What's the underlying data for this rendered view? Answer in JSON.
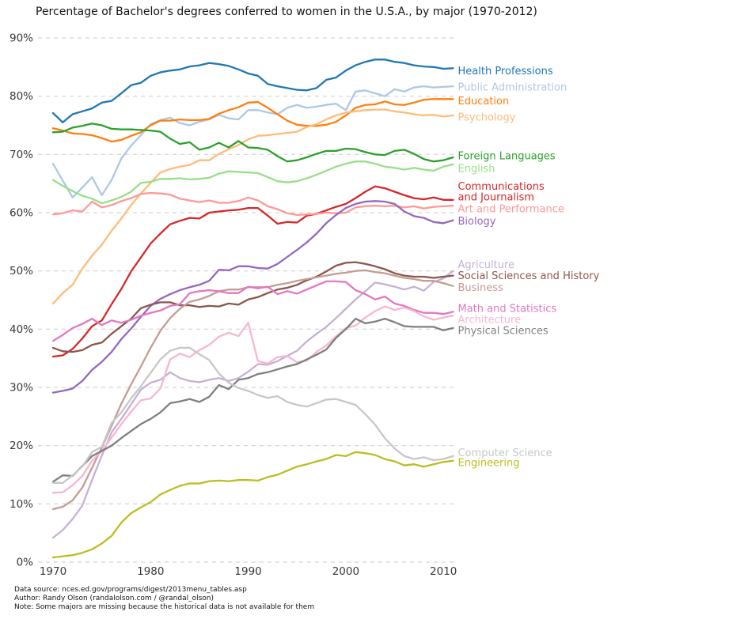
{
  "title": "Percentage of Bachelor's degrees conferred to women in the U.S.A., by major (1970-2012)",
  "footer": {
    "lines": [
      "Data source: nces.ed.gov/programs/digest/2013menu_tables.asp",
      "Author: Randy Olson (randalolson.com / @randal_olson)",
      "Note: Some majors are missing because the historical data is not available for them"
    ]
  },
  "chart_data": {
    "type": "line",
    "title": "Percentage of Bachelor's degrees conferred to women in the U.S.A., by major (1970-2012)",
    "xlabel": "",
    "ylabel": "",
    "xlim": [
      1970,
      2011
    ],
    "ylim": [
      0,
      90
    ],
    "x_ticks": [
      1970,
      1980,
      1990,
      2000,
      2010
    ],
    "y_ticks": [
      0,
      10,
      20,
      30,
      40,
      50,
      60,
      70,
      80,
      90
    ],
    "y_tick_suffix": "%",
    "grid": "horizontal-dashed",
    "grid_color": "#cbcbcb",
    "tick_label_color": "#383838",
    "legend_position": "right-of-line-ends",
    "x": [
      1970,
      1971,
      1972,
      1973,
      1974,
      1975,
      1976,
      1977,
      1978,
      1979,
      1980,
      1981,
      1982,
      1983,
      1984,
      1985,
      1986,
      1987,
      1988,
      1989,
      1990,
      1991,
      1992,
      1993,
      1994,
      1995,
      1996,
      1997,
      1998,
      1999,
      2000,
      2001,
      2002,
      2003,
      2004,
      2005,
      2006,
      2007,
      2008,
      2009,
      2010,
      2011
    ],
    "series": [
      {
        "name": "Health Professions",
        "color": "#1f77b4",
        "label_lines": [
          "Health Professions"
        ],
        "label_pct": 84.4,
        "values": [
          77.1,
          75.5,
          76.9,
          77.4,
          77.9,
          78.9,
          79.2,
          80.5,
          81.9,
          82.3,
          83.5,
          84.1,
          84.4,
          84.6,
          85.1,
          85.3,
          85.7,
          85.5,
          85.2,
          84.6,
          83.9,
          83.5,
          82.1,
          81.7,
          81.4,
          81.1,
          81.0,
          81.4,
          82.8,
          83.2,
          84.4,
          85.3,
          85.9,
          86.3,
          86.3,
          85.9,
          85.7,
          85.3,
          85.1,
          85.0,
          84.7,
          84.8
        ]
      },
      {
        "name": "Public Administration",
        "color": "#aec7e8",
        "label_lines": [
          "Public Administration"
        ],
        "label_pct": 81.6,
        "values": [
          68.4,
          65.5,
          62.6,
          64.3,
          66.1,
          63.0,
          65.6,
          69.3,
          71.5,
          73.3,
          75.2,
          75.9,
          76.3,
          75.4,
          75.0,
          75.6,
          76.0,
          76.8,
          76.2,
          76.0,
          77.6,
          77.6,
          77.2,
          76.9,
          78.0,
          78.5,
          78.0,
          78.2,
          78.5,
          78.7,
          77.6,
          80.8,
          81.0,
          80.5,
          80.0,
          81.2,
          80.8,
          81.5,
          81.7,
          81.5,
          81.6,
          81.7
        ]
      },
      {
        "name": "Education",
        "color": "#ff7f0e",
        "label_lines": [
          "Education"
        ],
        "label_pct": 79.2,
        "values": [
          74.5,
          74.1,
          73.6,
          73.5,
          73.3,
          72.8,
          72.2,
          72.5,
          73.2,
          73.8,
          75.0,
          75.8,
          75.8,
          76.0,
          75.9,
          75.9,
          76.1,
          77.0,
          77.6,
          78.1,
          78.9,
          79.0,
          78.0,
          76.9,
          75.8,
          75.1,
          74.9,
          74.9,
          75.1,
          75.6,
          76.7,
          78.0,
          78.5,
          78.6,
          79.1,
          78.6,
          78.5,
          78.9,
          79.4,
          79.5,
          79.5,
          79.5
        ]
      },
      {
        "name": "Psychology",
        "color": "#ffbb78",
        "label_lines": [
          "Psychology"
        ],
        "label_pct": 76.4,
        "values": [
          44.4,
          46.2,
          47.6,
          50.4,
          52.6,
          54.5,
          56.9,
          59.0,
          61.3,
          63.3,
          65.1,
          66.9,
          67.5,
          67.9,
          68.2,
          69.0,
          69.0,
          70.1,
          70.9,
          71.6,
          72.6,
          73.2,
          73.3,
          73.5,
          73.7,
          73.9,
          74.7,
          75.2,
          76.0,
          76.7,
          77.2,
          77.4,
          77.6,
          77.7,
          77.7,
          77.4,
          77.2,
          76.9,
          76.7,
          76.8,
          76.5,
          76.7
        ]
      },
      {
        "name": "Foreign Languages",
        "color": "#2ca02c",
        "label_lines": [
          "Foreign Languages"
        ],
        "label_pct": 69.8,
        "values": [
          73.8,
          73.9,
          74.6,
          74.9,
          75.3,
          75.0,
          74.4,
          74.3,
          74.3,
          74.2,
          74.1,
          73.9,
          72.7,
          71.8,
          72.1,
          70.8,
          71.2,
          72.0,
          71.2,
          72.3,
          71.2,
          71.1,
          70.8,
          69.7,
          68.8,
          69.0,
          69.5,
          70.1,
          70.6,
          70.6,
          71.0,
          70.9,
          70.4,
          70.0,
          69.9,
          70.6,
          70.8,
          70.1,
          69.2,
          68.8,
          69.0,
          69.5
        ]
      },
      {
        "name": "English",
        "color": "#98df8a",
        "label_lines": [
          "English"
        ],
        "label_pct": 67.6,
        "values": [
          65.6,
          64.6,
          63.7,
          62.9,
          62.4,
          61.6,
          62.1,
          62.7,
          63.6,
          65.1,
          65.3,
          65.8,
          65.8,
          65.9,
          65.7,
          65.8,
          66.0,
          66.7,
          67.1,
          67.0,
          66.9,
          66.8,
          66.1,
          65.4,
          65.2,
          65.4,
          65.9,
          66.5,
          67.2,
          67.9,
          68.4,
          68.8,
          68.8,
          68.4,
          67.9,
          67.7,
          67.4,
          67.7,
          67.4,
          67.2,
          67.9,
          68.3
        ]
      },
      {
        "name": "Communications and Journalism",
        "color": "#d62728",
        "label_lines": [
          "Communications",
          "and Journalism"
        ],
        "label_pct": 63.6,
        "values": [
          35.3,
          35.5,
          36.6,
          38.4,
          40.5,
          41.5,
          44.3,
          46.9,
          49.9,
          52.3,
          54.7,
          56.4,
          58.0,
          58.6,
          59.1,
          59.0,
          60.0,
          60.2,
          60.4,
          60.5,
          60.8,
          60.8,
          59.5,
          58.1,
          58.4,
          58.3,
          59.5,
          59.8,
          60.4,
          61.0,
          61.5,
          62.5,
          63.6,
          64.5,
          64.2,
          63.6,
          63.0,
          62.5,
          62.3,
          62.6,
          62.2,
          62.2
        ]
      },
      {
        "name": "Art and Performance",
        "color": "#ff9896",
        "label_lines": [
          "Art and Performance"
        ],
        "label_pct": 60.7,
        "values": [
          59.7,
          59.9,
          60.4,
          60.2,
          61.9,
          60.9,
          61.3,
          62.0,
          62.5,
          63.2,
          63.4,
          63.3,
          63.1,
          62.4,
          62.1,
          61.8,
          62.1,
          61.7,
          61.7,
          62.0,
          62.6,
          62.1,
          61.1,
          60.6,
          59.9,
          59.6,
          59.7,
          59.8,
          60.0,
          59.9,
          60.0,
          60.9,
          61.1,
          61.2,
          61.1,
          61.2,
          60.9,
          61.1,
          60.7,
          61.0,
          61.1,
          61.2
        ]
      },
      {
        "name": "Biology",
        "color": "#9467bd",
        "label_lines": [
          "Biology"
        ],
        "label_pct": 58.6,
        "values": [
          29.1,
          29.4,
          29.8,
          31.1,
          33.0,
          34.4,
          36.1,
          38.3,
          40.1,
          42.1,
          44.0,
          45.2,
          46.0,
          46.7,
          47.2,
          47.6,
          48.3,
          50.2,
          50.1,
          50.8,
          50.8,
          50.5,
          50.4,
          51.2,
          52.4,
          53.6,
          54.9,
          56.4,
          58.2,
          59.6,
          60.8,
          61.5,
          61.9,
          62.0,
          61.9,
          61.5,
          60.2,
          59.4,
          59.1,
          58.4,
          58.2,
          58.7
        ]
      },
      {
        "name": "Agriculture",
        "color": "#c5b0d5",
        "label_lines": [
          "Agriculture"
        ],
        "label_pct": 51.1,
        "values": [
          4.2,
          5.5,
          7.4,
          9.7,
          14.1,
          18.3,
          22.3,
          24.6,
          27.1,
          29.6,
          30.8,
          31.3,
          32.6,
          31.6,
          31.1,
          30.9,
          31.3,
          31.6,
          31.1,
          31.6,
          32.7,
          34.0,
          33.9,
          34.5,
          35.4,
          36.3,
          37.9,
          39.2,
          40.4,
          41.9,
          43.5,
          45.1,
          46.5,
          48.0,
          47.7,
          47.3,
          46.8,
          47.3,
          46.6,
          48.1,
          48.7,
          50.0
        ]
      },
      {
        "name": "Social Sciences and History",
        "color": "#8c564b",
        "label_lines": [
          "Social Sciences and History"
        ],
        "label_pct": 49.2,
        "values": [
          36.8,
          36.2,
          36.1,
          36.4,
          37.3,
          37.7,
          39.2,
          40.5,
          41.8,
          43.6,
          44.2,
          44.6,
          44.6,
          44.1,
          44.1,
          43.8,
          44.0,
          43.9,
          44.4,
          44.2,
          45.1,
          45.5,
          46.2,
          46.8,
          47.1,
          47.6,
          48.4,
          49.0,
          49.9,
          50.9,
          51.4,
          51.5,
          51.2,
          50.8,
          50.3,
          49.6,
          49.2,
          49.0,
          49.0,
          48.8,
          49.0,
          49.2
        ]
      },
      {
        "name": "Business",
        "color": "#c49c94",
        "label_lines": [
          "Business"
        ],
        "label_pct": 47.2,
        "values": [
          9.1,
          9.5,
          10.6,
          12.8,
          16.2,
          19.7,
          23.4,
          27.2,
          30.5,
          33.6,
          36.8,
          39.7,
          41.9,
          43.5,
          44.7,
          45.1,
          45.7,
          46.5,
          46.8,
          46.8,
          47.2,
          47.2,
          47.2,
          47.6,
          47.9,
          48.3,
          48.6,
          48.9,
          49.2,
          49.5,
          49.7,
          50.0,
          50.1,
          49.8,
          49.6,
          49.2,
          48.8,
          48.6,
          48.3,
          48.3,
          47.9,
          47.4
        ]
      },
      {
        "name": "Math and Statistics",
        "color": "#e377c2",
        "label_lines": [
          "Math and Statistics"
        ],
        "label_pct": 43.6,
        "values": [
          38.0,
          39.0,
          40.2,
          40.9,
          41.8,
          40.7,
          41.5,
          41.1,
          41.6,
          42.3,
          42.8,
          43.2,
          44.0,
          44.3,
          46.2,
          46.5,
          46.7,
          46.5,
          46.2,
          46.2,
          47.3,
          47.0,
          47.3,
          46.0,
          46.5,
          46.1,
          46.8,
          47.5,
          48.2,
          48.2,
          48.1,
          46.7,
          46.0,
          45.1,
          45.6,
          44.4,
          44.0,
          43.3,
          42.8,
          42.8,
          42.6,
          43.0
        ]
      },
      {
        "name": "Architecture",
        "color": "#f7b6d2",
        "label_lines": [
          "Architecture"
        ],
        "label_pct": 41.7,
        "values": [
          11.9,
          12.0,
          13.2,
          14.8,
          17.4,
          19.1,
          21.4,
          23.7,
          25.8,
          27.8,
          28.1,
          29.8,
          34.8,
          35.8,
          35.2,
          36.4,
          37.3,
          38.7,
          39.4,
          38.8,
          41.1,
          34.5,
          34.1,
          35.2,
          35.4,
          34.3,
          34.6,
          36.1,
          37.2,
          38.8,
          40.2,
          40.6,
          42.0,
          43.1,
          43.9,
          43.3,
          43.7,
          43.1,
          42.2,
          41.6,
          42.0,
          42.3
        ]
      },
      {
        "name": "Physical Sciences",
        "color": "#7f7f7f",
        "label_lines": [
          "Physical Sciences"
        ],
        "label_pct": 39.8,
        "values": [
          13.8,
          14.9,
          14.8,
          16.5,
          18.2,
          19.1,
          20.0,
          21.3,
          22.5,
          23.7,
          24.6,
          25.7,
          27.3,
          27.6,
          28.0,
          27.5,
          28.4,
          30.4,
          29.7,
          31.3,
          31.6,
          32.3,
          32.6,
          33.1,
          33.6,
          34.0,
          34.8,
          35.6,
          36.5,
          38.5,
          40.0,
          41.8,
          41.0,
          41.3,
          41.8,
          41.2,
          40.5,
          40.4,
          40.4,
          40.4,
          39.8,
          40.2
        ]
      },
      {
        "name": "Computer Science",
        "color": "#c7c7c7",
        "label_lines": [
          "Computer Science"
        ],
        "label_pct": 18.8,
        "values": [
          13.6,
          13.6,
          14.9,
          16.4,
          18.9,
          19.8,
          23.9,
          25.7,
          28.1,
          30.2,
          32.5,
          34.8,
          36.3,
          36.8,
          36.8,
          35.7,
          34.7,
          32.4,
          30.8,
          29.9,
          29.4,
          28.7,
          28.2,
          28.5,
          27.5,
          27.0,
          26.7,
          27.3,
          27.9,
          28.0,
          27.5,
          27.0,
          25.4,
          23.6,
          21.3,
          19.5,
          18.2,
          17.7,
          18.0,
          17.5,
          17.7,
          18.2
        ]
      },
      {
        "name": "Engineering",
        "color": "#bcbd22",
        "label_lines": [
          "Engineering"
        ],
        "label_pct": 17.1,
        "values": [
          0.8,
          1.0,
          1.2,
          1.6,
          2.2,
          3.2,
          4.5,
          6.8,
          8.4,
          9.4,
          10.3,
          11.6,
          12.4,
          13.1,
          13.5,
          13.5,
          13.9,
          14.0,
          13.9,
          14.1,
          14.1,
          14.0,
          14.6,
          15.0,
          15.7,
          16.4,
          16.8,
          17.3,
          17.7,
          18.4,
          18.2,
          18.9,
          18.7,
          18.4,
          17.7,
          17.3,
          16.6,
          16.8,
          16.4,
          16.8,
          17.2,
          17.4
        ]
      }
    ]
  }
}
